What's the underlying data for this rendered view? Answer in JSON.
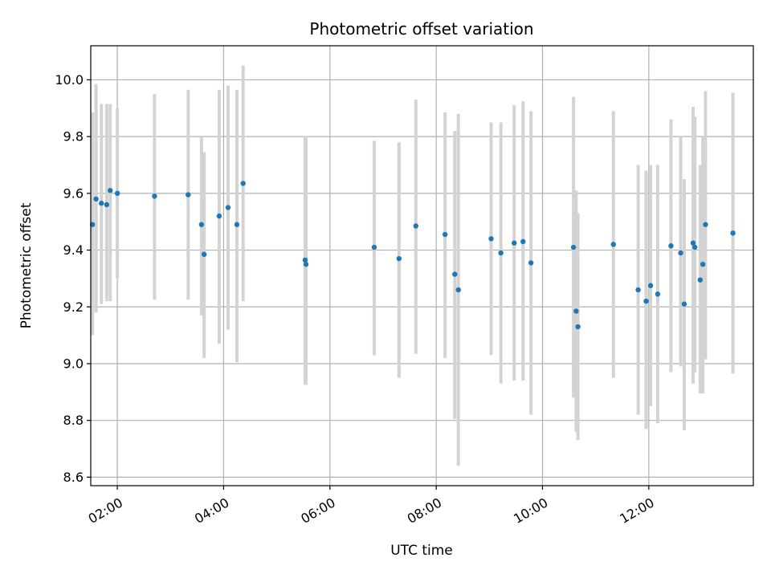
{
  "chart_data": {
    "type": "scatter",
    "title": "Photometric offset variation",
    "xlabel": "UTC time",
    "ylabel": "Photometric offset",
    "x_unit": "hours UTC",
    "xlim": [
      "01:30",
      "13:58"
    ],
    "ylim": [
      8.57,
      10.12
    ],
    "x_ticks": [
      "02:00",
      "04:00",
      "06:00",
      "08:00",
      "10:00",
      "12:00"
    ],
    "y_ticks": [
      8.6,
      8.8,
      9.0,
      9.2,
      9.4,
      9.6,
      9.8,
      10.0
    ],
    "grid": true,
    "point_color": "#1f77b4",
    "errorbar_color": "#d3d3d3",
    "x": [
      "01:32",
      "01:36",
      "01:42",
      "01:48",
      "01:52",
      "02:00",
      "02:42",
      "03:20",
      "03:35",
      "03:38",
      "03:55",
      "04:05",
      "04:15",
      "04:22",
      "05:32",
      "05:33",
      "06:50",
      "07:18",
      "07:37",
      "08:10",
      "08:21",
      "08:25",
      "09:02",
      "09:13",
      "09:28",
      "09:38",
      "09:47",
      "10:35",
      "10:38",
      "10:40",
      "11:20",
      "11:48",
      "11:57",
      "12:02",
      "12:10",
      "12:25",
      "12:36",
      "12:40",
      "12:50",
      "12:52",
      "12:58",
      "13:01",
      "13:04",
      "13:35"
    ],
    "y": [
      9.49,
      9.58,
      9.565,
      9.56,
      9.61,
      9.6,
      9.59,
      9.595,
      9.49,
      9.385,
      9.52,
      9.55,
      9.49,
      9.635,
      9.365,
      9.35,
      9.41,
      9.37,
      9.485,
      9.455,
      9.315,
      9.26,
      9.44,
      9.39,
      9.425,
      9.43,
      9.355,
      9.41,
      9.185,
      9.13,
      9.42,
      9.26,
      9.22,
      9.275,
      9.245,
      9.415,
      9.39,
      9.21,
      9.425,
      9.41,
      9.295,
      9.35,
      9.49,
      9.46
    ],
    "yerr_low": [
      9.1,
      9.18,
      9.21,
      9.22,
      9.22,
      9.3,
      9.225,
      9.225,
      9.17,
      9.02,
      9.07,
      9.12,
      9.005,
      9.22,
      8.925,
      8.925,
      9.03,
      8.95,
      9.035,
      9.02,
      8.805,
      8.64,
      9.03,
      8.93,
      8.94,
      8.94,
      8.82,
      8.88,
      8.76,
      8.73,
      8.95,
      8.82,
      8.77,
      8.85,
      8.79,
      8.97,
      8.99,
      8.765,
      8.93,
      8.97,
      8.895,
      8.895,
      9.015,
      8.965
    ],
    "yerr_high": [
      9.885,
      9.985,
      9.915,
      9.915,
      9.915,
      9.9,
      9.95,
      9.965,
      9.8,
      9.745,
      9.965,
      9.98,
      9.965,
      10.05,
      9.8,
      9.8,
      9.785,
      9.78,
      9.93,
      9.885,
      9.82,
      9.88,
      9.85,
      9.85,
      9.91,
      9.925,
      9.89,
      9.94,
      9.61,
      9.53,
      9.89,
      9.7,
      9.68,
      9.7,
      9.7,
      9.86,
      9.8,
      9.65,
      9.905,
      9.87,
      9.7,
      9.8,
      9.96,
      9.955
    ]
  }
}
